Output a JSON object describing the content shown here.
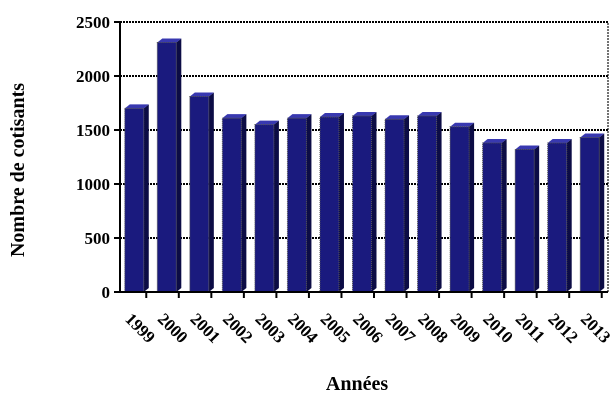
{
  "chart_data": {
    "type": "bar",
    "xlabel": "Années",
    "ylabel": "Nombre de cotisants",
    "categories": [
      "1999",
      "2000",
      "2001",
      "2002",
      "2003",
      "2004",
      "2005",
      "2006",
      "2007",
      "2008",
      "2009",
      "2010",
      "2011",
      "2012",
      "2013"
    ],
    "values": [
      1700,
      2310,
      1810,
      1610,
      1550,
      1610,
      1620,
      1630,
      1600,
      1630,
      1530,
      1380,
      1320,
      1380,
      1430
    ],
    "ylim": [
      0,
      2500
    ],
    "yticks": [
      "0",
      "500",
      "1000",
      "1500",
      "2000",
      "2500"
    ],
    "grid": true,
    "colors": {
      "bar": "#1a1a7e",
      "bar_side": "#0c0c45",
      "bar_top": "#3838b0",
      "grid": "#000000"
    }
  }
}
